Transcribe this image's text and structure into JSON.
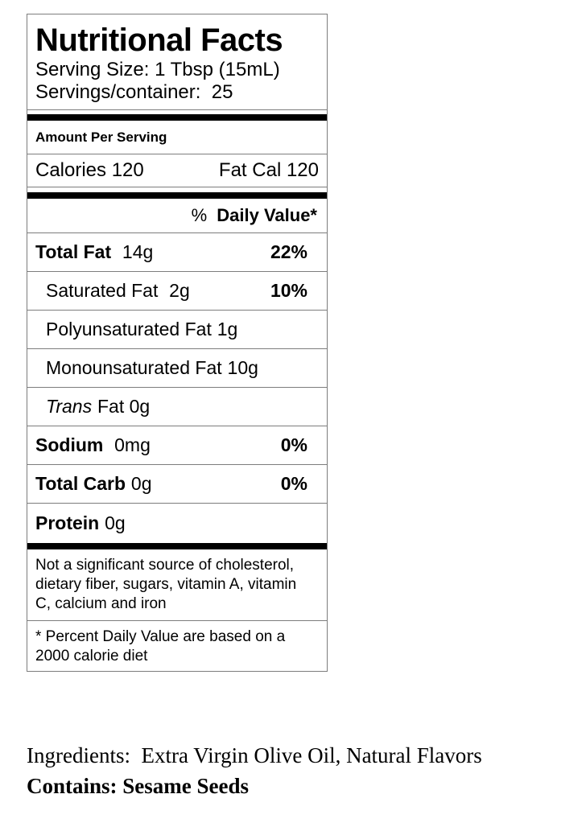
{
  "label": {
    "title": "Nutritional Facts",
    "serving_size": "Serving Size: 1 Tbsp (15mL)",
    "servings_per_container": "Servings/container:  25",
    "amount_per_serving": "Amount Per Serving",
    "calories": "Calories 120",
    "fat_calories": "Fat Cal 120",
    "daily_value_header": {
      "percent_sign": "%",
      "label": "Daily Value*"
    },
    "rows": [
      {
        "name": "Total Fat",
        "value": "14g",
        "pct": "22%"
      },
      {
        "name": "Saturated Fat",
        "value": "2g",
        "pct": "10%"
      },
      {
        "name": "Polyunsaturated Fat",
        "value": "1g"
      },
      {
        "name": "Monounsaturated Fat",
        "value": "10g"
      },
      {
        "name": "Trans",
        "value": "Fat 0g"
      },
      {
        "name": "Sodium",
        "value": "0mg",
        "pct": "0%"
      },
      {
        "name": "Total Carb",
        "value": "0g",
        "pct": "0%"
      },
      {
        "name": "Protein",
        "value": "0g"
      }
    ],
    "footnote_sources": {
      "line1": "Not a significant source of cholesterol,",
      "line2": "dietary fiber, sugars, vitamin A, vitamin",
      "line3": "C, calcium and iron"
    },
    "footnote_daily_value": {
      "line1": "* Percent Daily Value are based on a",
      "line2": "2000 calorie diet"
    },
    "colors": {
      "thin_border": "#7d7d7d",
      "thick_bar": "#000000",
      "text": "#000000",
      "background": "#ffffff"
    }
  },
  "ingredients_section": {
    "ingredients_label": "Ingredients:",
    "ingredients_value": "Extra Virgin Olive Oil, Natural Flavors",
    "contains": "Contains: Sesame Seeds"
  }
}
